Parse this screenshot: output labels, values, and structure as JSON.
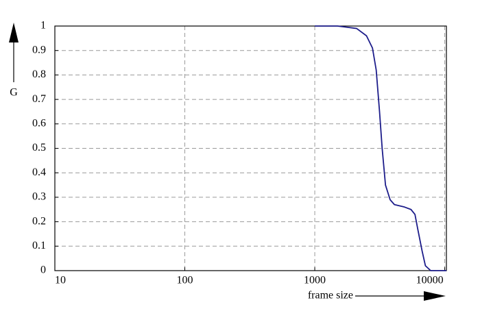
{
  "chart_data": {
    "type": "line",
    "xlabel": "frame size",
    "ylabel": "G",
    "x": [
      1000,
      1494,
      2100,
      2500,
      2780,
      2970,
      3150,
      3300,
      3500,
      3800,
      4100,
      4900,
      5500,
      5900,
      6200,
      6700,
      7100,
      7800,
      10000,
      10300
    ],
    "series": [
      {
        "name": "G",
        "color": "#1c1c8a",
        "values": [
          1,
          1,
          0.99,
          0.96,
          0.91,
          0.82,
          0.65,
          0.5,
          0.35,
          0.29,
          0.27,
          0.26,
          0.25,
          0.23,
          0.17,
          0.08,
          0.02,
          0,
          0,
          0
        ]
      }
    ],
    "xscale": "log",
    "xlim": [
      10,
      10300
    ],
    "xticks": [
      10,
      100,
      1000,
      10000
    ],
    "ylim": [
      0,
      1
    ],
    "yticks": [
      0,
      0.1,
      0.2,
      0.3,
      0.4,
      0.5,
      0.6,
      0.7,
      0.8,
      0.9,
      1
    ],
    "grid": true
  }
}
